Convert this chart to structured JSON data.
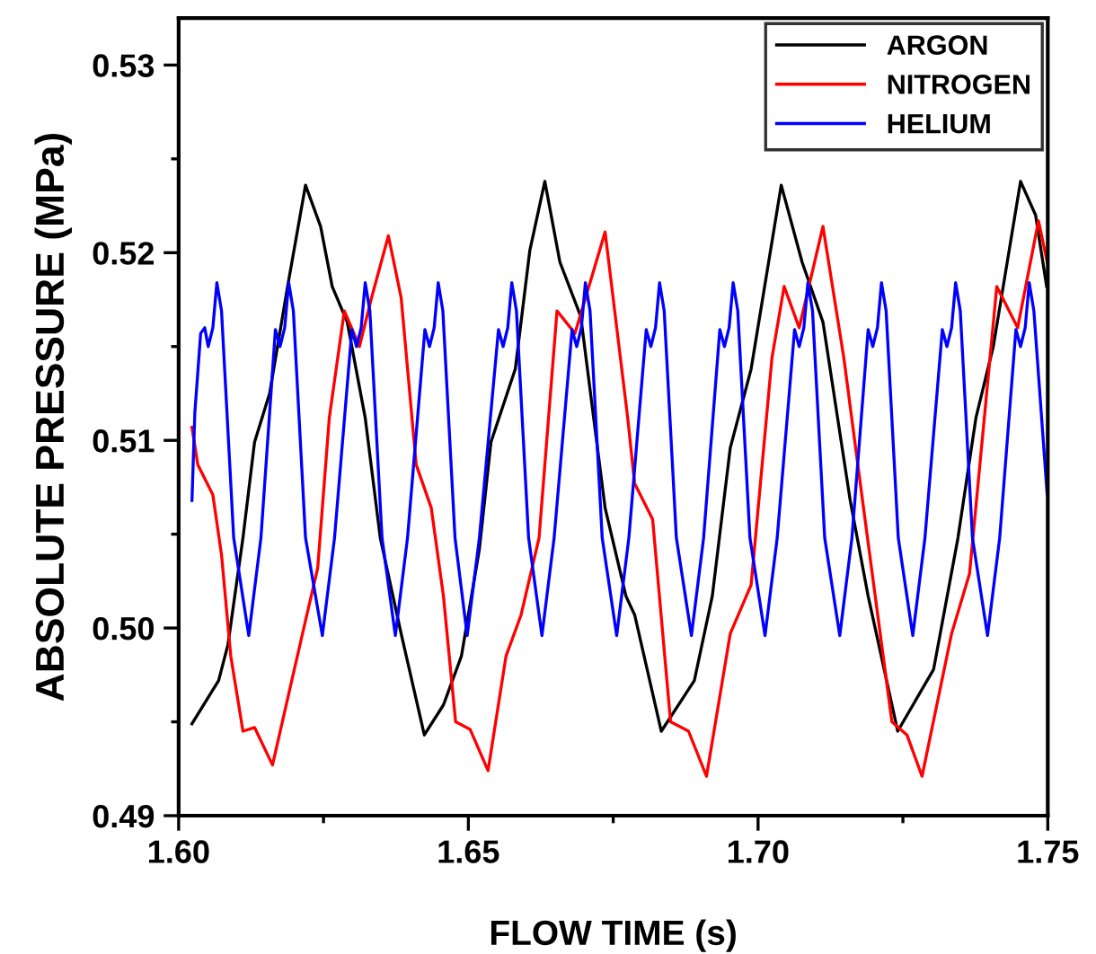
{
  "chart_data": {
    "type": "line",
    "xlabel": "FLOW TIME (s)",
    "ylabel": "ABSOLUTE PRESSURE (MPa)",
    "xlim": [
      1.6,
      1.75
    ],
    "ylim": [
      0.49,
      0.5325
    ],
    "xticks": [
      {
        "value": 1.6,
        "label": "1.60"
      },
      {
        "value": 1.625,
        "label": null
      },
      {
        "value": 1.65,
        "label": "1.65"
      },
      {
        "value": 1.675,
        "label": null
      },
      {
        "value": 1.7,
        "label": "1.70"
      },
      {
        "value": 1.725,
        "label": null
      },
      {
        "value": 1.75,
        "label": "1.75"
      }
    ],
    "yticks": [
      {
        "value": 0.49,
        "label": "0.49"
      },
      {
        "value": 0.495,
        "label": null
      },
      {
        "value": 0.5,
        "label": "0.50"
      },
      {
        "value": 0.505,
        "label": null
      },
      {
        "value": 0.51,
        "label": "0.51"
      },
      {
        "value": 0.515,
        "label": null
      },
      {
        "value": 0.52,
        "label": "0.52"
      },
      {
        "value": 0.525,
        "label": null
      },
      {
        "value": 0.53,
        "label": "0.53"
      }
    ],
    "grid": false,
    "legend": "top right",
    "marker": "none",
    "line_style": "solid",
    "series": [
      {
        "name": "ARGON",
        "color": "#000000",
        "x": [
          1.6023,
          1.6069,
          1.6085,
          1.6111,
          1.6131,
          1.6157,
          1.6188,
          1.6219,
          1.6245,
          1.6265,
          1.6291,
          1.6322,
          1.6348,
          1.6384,
          1.6424,
          1.6457,
          1.6488,
          1.6519,
          1.6539,
          1.6581,
          1.6606,
          1.6632,
          1.6658,
          1.6694,
          1.6736,
          1.6772,
          1.6787,
          1.6833,
          1.689,
          1.6921,
          1.6952,
          1.6988,
          1.704,
          1.7076,
          1.7112,
          1.7159,
          1.719,
          1.7241,
          1.7303,
          1.7345,
          1.7376,
          1.7406,
          1.7453,
          1.7479,
          1.7498
        ],
        "values": [
          0.4949,
          0.4972,
          0.4991,
          0.5048,
          0.5099,
          0.5125,
          0.5182,
          0.5236,
          0.5214,
          0.5182,
          0.5163,
          0.5112,
          0.5048,
          0.4997,
          0.4943,
          0.4959,
          0.4985,
          0.5042,
          0.5099,
          0.5138,
          0.5201,
          0.5238,
          0.5195,
          0.5166,
          0.5064,
          0.5017,
          0.5007,
          0.4945,
          0.4972,
          0.5017,
          0.5096,
          0.5138,
          0.5236,
          0.5195,
          0.5163,
          0.5068,
          0.5017,
          0.4945,
          0.4978,
          0.5048,
          0.5112,
          0.515,
          0.5238,
          0.522,
          0.5182
        ]
      },
      {
        "name": "NITROGEN",
        "color": "#ff0000",
        "x": [
          1.6023,
          1.6033,
          1.6059,
          1.6074,
          1.609,
          1.6111,
          1.6131,
          1.6162,
          1.6193,
          1.6219,
          1.624,
          1.626,
          1.6286,
          1.6312,
          1.6333,
          1.6362,
          1.6384,
          1.641,
          1.6436,
          1.6457,
          1.6478,
          1.6503,
          1.6534,
          1.6565,
          1.6591,
          1.6622,
          1.6653,
          1.6684,
          1.6736,
          1.6775,
          1.6787,
          1.6818,
          1.6849,
          1.688,
          1.6911,
          1.6952,
          1.6988,
          1.7024,
          1.7045,
          1.7071,
          1.7112,
          1.7148,
          1.7179,
          1.7231,
          1.7257,
          1.7283,
          1.7334,
          1.7365,
          1.7412,
          1.7448,
          1.7484,
          1.7499
        ],
        "values": [
          0.5107,
          0.5087,
          0.5071,
          0.5039,
          0.4985,
          0.4945,
          0.4947,
          0.4927,
          0.4969,
          0.5004,
          0.5032,
          0.5112,
          0.5169,
          0.515,
          0.5176,
          0.5209,
          0.5176,
          0.5087,
          0.5064,
          0.5017,
          0.495,
          0.4946,
          0.4924,
          0.4985,
          0.5007,
          0.5048,
          0.5169,
          0.5157,
          0.5211,
          0.5112,
          0.5077,
          0.5058,
          0.495,
          0.4945,
          0.4921,
          0.4997,
          0.5023,
          0.5144,
          0.5182,
          0.516,
          0.5214,
          0.5144,
          0.5071,
          0.495,
          0.4943,
          0.4921,
          0.4997,
          0.5029,
          0.5182,
          0.516,
          0.5217,
          0.5195
        ]
      },
      {
        "name": "HELIUM",
        "color": "#0000ff",
        "x": [
          1.6023,
          1.6028,
          1.6038,
          1.6045,
          1.6051,
          1.6059,
          1.6066,
          1.6074,
          1.6095,
          1.6121,
          1.6142,
          1.6167,
          1.6175,
          1.6183,
          1.619,
          1.6198,
          1.6219,
          1.6248,
          1.6269,
          1.6299,
          1.6307,
          1.6315,
          1.6322,
          1.633,
          1.6351,
          1.6374,
          1.6395,
          1.6425,
          1.6433,
          1.6441,
          1.6448,
          1.6456,
          1.6477,
          1.6498,
          1.6519,
          1.6552,
          1.656,
          1.6568,
          1.6575,
          1.6583,
          1.6604,
          1.6627,
          1.6648,
          1.6679,
          1.6687,
          1.6695,
          1.6702,
          1.671,
          1.6731,
          1.6756,
          1.6777,
          1.6807,
          1.6815,
          1.6823,
          1.683,
          1.6838,
          1.6859,
          1.6885,
          1.6906,
          1.6934,
          1.6942,
          1.695,
          1.6957,
          1.6965,
          1.6986,
          1.7012,
          1.7033,
          1.7063,
          1.7071,
          1.7079,
          1.7086,
          1.7094,
          1.7115,
          1.7141,
          1.7162,
          1.719,
          1.7198,
          1.7206,
          1.7213,
          1.7221,
          1.7242,
          1.7267,
          1.7288,
          1.7318,
          1.7326,
          1.7334,
          1.7341,
          1.7349,
          1.737,
          1.7396,
          1.7417,
          1.7445,
          1.7453,
          1.7461,
          1.7468,
          1.7476,
          1.7499
        ],
        "values": [
          0.5068,
          0.5115,
          0.5157,
          0.516,
          0.515,
          0.516,
          0.5184,
          0.5169,
          0.5048,
          0.4996,
          0.5048,
          0.5159,
          0.515,
          0.516,
          0.5184,
          0.5169,
          0.5048,
          0.4996,
          0.5048,
          0.5159,
          0.515,
          0.516,
          0.5184,
          0.5169,
          0.5048,
          0.4996,
          0.5048,
          0.5159,
          0.515,
          0.516,
          0.5184,
          0.5169,
          0.5048,
          0.4996,
          0.5048,
          0.5159,
          0.515,
          0.516,
          0.5184,
          0.5169,
          0.5048,
          0.4996,
          0.5048,
          0.5159,
          0.515,
          0.516,
          0.5184,
          0.5169,
          0.5048,
          0.4996,
          0.5048,
          0.5159,
          0.515,
          0.516,
          0.5184,
          0.5169,
          0.5048,
          0.4996,
          0.5048,
          0.5159,
          0.515,
          0.516,
          0.5184,
          0.5169,
          0.5048,
          0.4996,
          0.5048,
          0.5159,
          0.515,
          0.516,
          0.5184,
          0.5169,
          0.5048,
          0.4996,
          0.5048,
          0.5159,
          0.515,
          0.516,
          0.5184,
          0.5169,
          0.5048,
          0.4996,
          0.5048,
          0.5159,
          0.515,
          0.516,
          0.5184,
          0.5169,
          0.5048,
          0.4996,
          0.5048,
          0.5159,
          0.515,
          0.516,
          0.5184,
          0.5169,
          0.5071
        ]
      }
    ]
  }
}
